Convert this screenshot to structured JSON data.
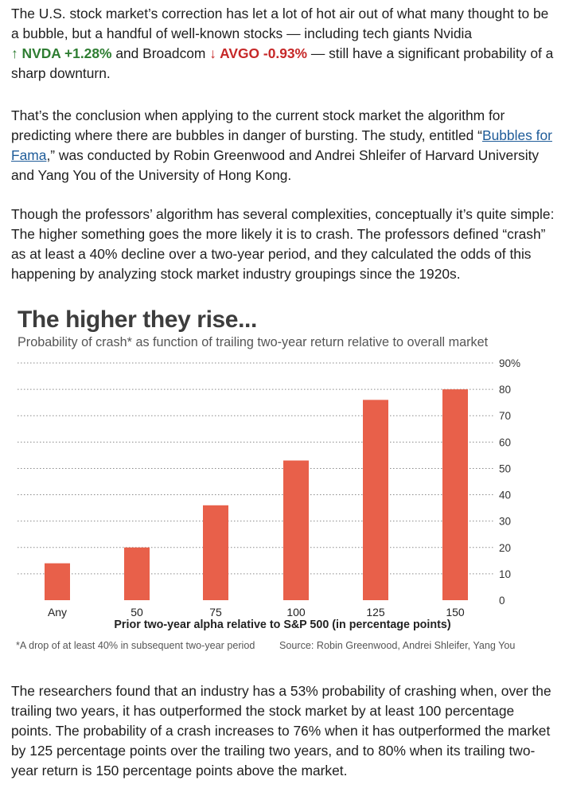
{
  "article": {
    "p1": {
      "t1": "The U.S. stock market’s correction has let a lot of hot air out of what many thought to be a bubble, but a handful of well-known stocks — including tech giants Nvidia",
      "nvda_arrow": "↑",
      "nvda": "NVDA +1.28%",
      "t2": " and Broadcom ",
      "avgo_arrow": "↓",
      "avgo": "AVGO -0.93%",
      "t3": " — still have a significant probability of a sharp downturn."
    },
    "p2": {
      "t1": "That’s the conclusion when applying to the current stock market the algorithm for predicting where there are bubbles in danger of bursting. The study, entitled “",
      "link": "Bubbles for Fama",
      "t2": ",” was conducted by Robin Greenwood and Andrei Shleifer of Harvard University and Yang You of the University of Hong Kong."
    },
    "p3": "Though the professors’ algorithm has several complexities, conceptually it’s quite simple: The higher something goes the more likely it is to crash. The professors defined “crash” as at least a 40% decline over a two-year period, and they calculated the odds of this happening by analyzing stock market industry groupings since the 1920s.",
    "p4": "The researchers found that an industry has a 53% probability of crashing when, over the trailing two years, it has outperformed the stock market by at least 100 percentage points. The probability of a crash increases to 76% when it has outperformed the market by 125 percentage points over the trailing two years, and to 80% when its trailing two-year return is 150 percentage points above the market."
  },
  "chart_data": {
    "type": "bar",
    "title": "The higher they rise...",
    "subtitle": "Probability of crash* as function of trailing two-year return relative to overall market",
    "categories": [
      "Any",
      "50",
      "75",
      "100",
      "125",
      "150"
    ],
    "values": [
      14,
      20,
      36,
      53,
      76,
      80
    ],
    "ylim": [
      0,
      90
    ],
    "yticks": [
      0,
      10,
      20,
      30,
      40,
      50,
      60,
      70,
      80,
      90
    ],
    "ytick_labels": [
      "0",
      "10",
      "20",
      "30",
      "40",
      "50",
      "60",
      "70",
      "80",
      "90%"
    ],
    "xlabel": "Prior two-year alpha relative to S&P 500 (in percentage points)",
    "ylabel": "",
    "y_axis_side": "right",
    "grid": true,
    "bar_color": "#e8604a",
    "footnote": "*A drop of at least 40% in subsequent two-year period",
    "source": "Source: Robin Greenwood, Andrei Shleifer, Yang You"
  },
  "colors": {
    "up": "#2e7d32",
    "down": "#c62828",
    "link": "#1f5c99",
    "bar": "#e8604a"
  }
}
